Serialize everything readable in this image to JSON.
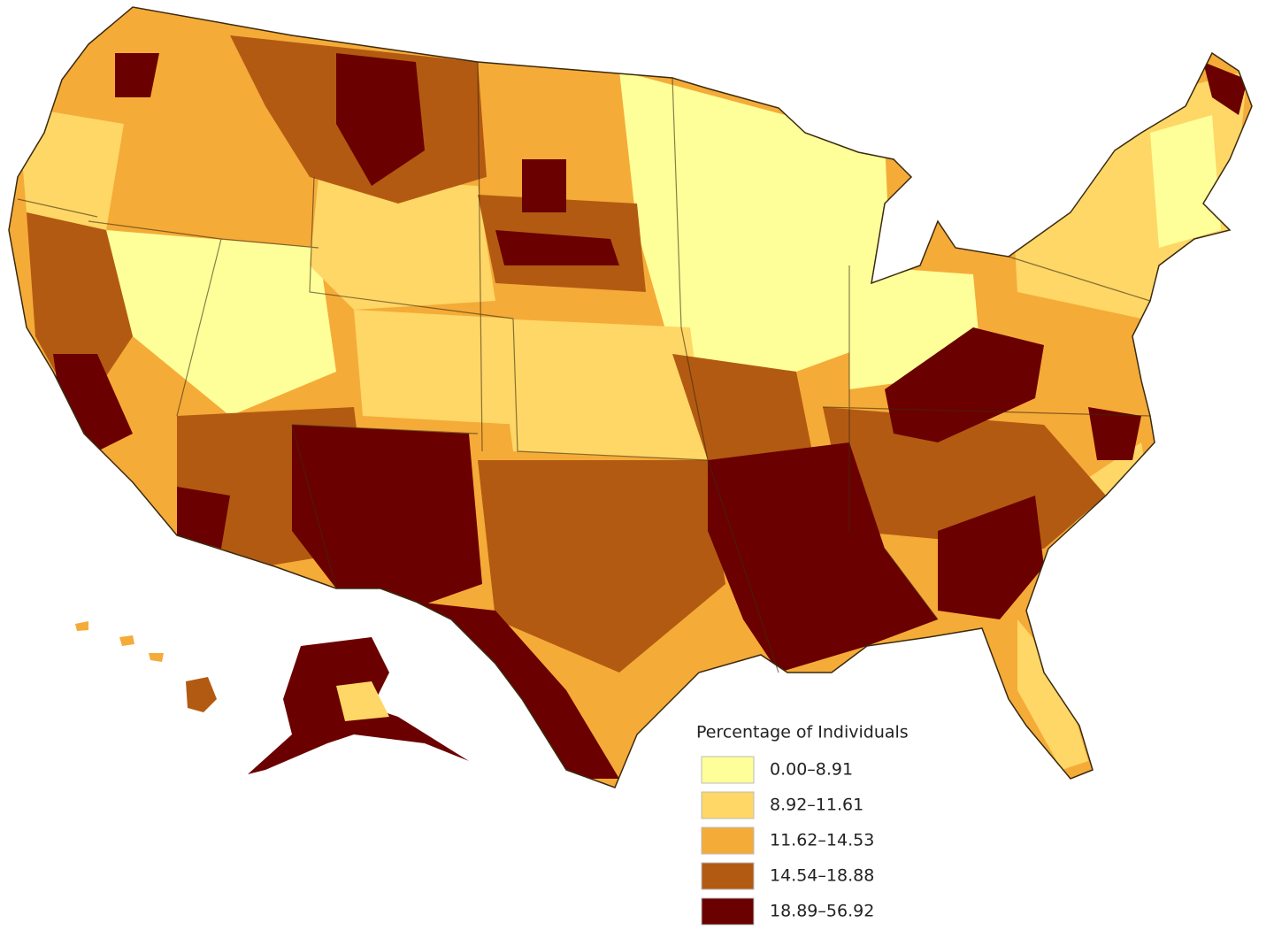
{
  "legend": {
    "title": "Percentage of Individuals",
    "items": [
      {
        "label": "0.00–8.91",
        "color": "#ffff99"
      },
      {
        "label": "8.92–11.61",
        "color": "#fed766"
      },
      {
        "label": "11.62–14.53",
        "color": "#f5ab38"
      },
      {
        "label": "14.54–18.88",
        "color": "#b35a12"
      },
      {
        "label": "18.89–56.92",
        "color": "#6b0000"
      }
    ]
  }
}
